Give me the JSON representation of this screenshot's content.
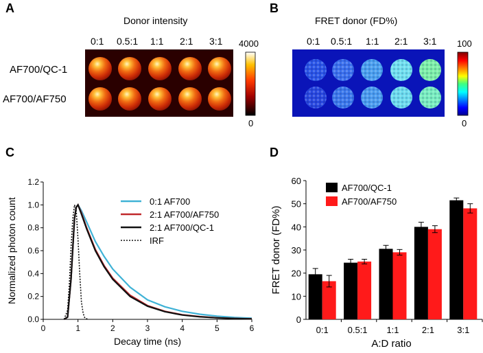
{
  "figure": {
    "panels": {
      "A": {
        "letter": "A",
        "title": "Donor intensity",
        "columns": [
          "0:1",
          "0.5:1",
          "1:1",
          "2:1",
          "3:1"
        ],
        "rows": [
          "AF700/QC-1",
          "AF700/AF750"
        ],
        "colorbar": {
          "max_label": "4000",
          "min_label": "0"
        }
      },
      "B": {
        "letter": "B",
        "title": "FRET donor (FD%)",
        "columns": [
          "0:1",
          "0.5:1",
          "1:1",
          "2:1",
          "3:1"
        ],
        "colorbar": {
          "max_label": "100",
          "min_label": "0"
        }
      },
      "C": {
        "letter": "C"
      },
      "D": {
        "letter": "D"
      }
    }
  },
  "chart_data": [
    {
      "panel": "C",
      "type": "line",
      "title": "",
      "xlabel": "Decay time (ns)",
      "ylabel": "Normalized photon count",
      "xlim": [
        0,
        6
      ],
      "ylim": [
        0,
        1.2
      ],
      "xticks": [
        "0",
        "1",
        "2",
        "3",
        "4",
        "5",
        "6"
      ],
      "yticks": [
        "0.0",
        "0.2",
        "0.4",
        "0.6",
        "0.8",
        "1.0",
        "1.2"
      ],
      "legend": [
        "0:1  AF700",
        "2:1  AF700/AF750",
        "2:1  AF700/QC-1",
        "IRF"
      ],
      "legend_position": "top-right",
      "series": [
        {
          "name": "0:1  AF700",
          "color": "#3fb2d6",
          "dash": "solid",
          "x": [
            0.6,
            0.7,
            0.8,
            0.9,
            0.95,
            1.0,
            1.1,
            1.25,
            1.5,
            1.75,
            2.0,
            2.5,
            3.0,
            3.5,
            4.0,
            4.5,
            5.0,
            5.5,
            6.0
          ],
          "y": [
            0.0,
            0.02,
            0.35,
            0.88,
            0.98,
            1.0,
            0.95,
            0.85,
            0.68,
            0.55,
            0.44,
            0.28,
            0.17,
            0.11,
            0.07,
            0.045,
            0.028,
            0.017,
            0.01
          ]
        },
        {
          "name": "2:1  AF700/AF750",
          "color": "#c0282b",
          "dash": "solid",
          "x": [
            0.6,
            0.7,
            0.8,
            0.9,
            0.95,
            1.0,
            1.1,
            1.25,
            1.5,
            1.75,
            2.0,
            2.5,
            3.0,
            3.5,
            4.0,
            4.5,
            5.0,
            5.5,
            6.0
          ],
          "y": [
            0.0,
            0.02,
            0.35,
            0.88,
            0.98,
            1.0,
            0.93,
            0.8,
            0.61,
            0.47,
            0.36,
            0.21,
            0.12,
            0.07,
            0.04,
            0.024,
            0.014,
            0.008,
            0.005
          ]
        },
        {
          "name": "2:1  AF700/QC-1",
          "color": "#111111",
          "dash": "solid",
          "x": [
            0.6,
            0.7,
            0.8,
            0.9,
            0.95,
            1.0,
            1.1,
            1.25,
            1.5,
            1.75,
            2.0,
            2.5,
            3.0,
            3.5,
            4.0,
            4.5,
            5.0,
            5.5,
            6.0
          ],
          "y": [
            0.0,
            0.02,
            0.35,
            0.88,
            0.98,
            1.0,
            0.92,
            0.79,
            0.6,
            0.46,
            0.35,
            0.2,
            0.115,
            0.067,
            0.038,
            0.022,
            0.013,
            0.007,
            0.004
          ]
        },
        {
          "name": "IRF",
          "color": "#111111",
          "dash": "dotted",
          "x": [
            0.6,
            0.7,
            0.75,
            0.8,
            0.85,
            0.9,
            0.95,
            1.0,
            1.05,
            1.1,
            1.15,
            1.2,
            1.3
          ],
          "y": [
            0.0,
            0.08,
            0.3,
            0.62,
            0.88,
            1.0,
            0.95,
            0.7,
            0.4,
            0.15,
            0.05,
            0.01,
            0.0
          ]
        }
      ]
    },
    {
      "panel": "D",
      "type": "bar",
      "title": "",
      "xlabel": "A:D ratio",
      "ylabel": "FRET donor (FD%)",
      "ylim": [
        0,
        60
      ],
      "yticks": [
        "0",
        "10",
        "20",
        "30",
        "40",
        "50",
        "60"
      ],
      "categories": [
        "0:1",
        "0.5:1",
        "1:1",
        "2:1",
        "3:1"
      ],
      "legend_position": "top-left",
      "series": [
        {
          "name": "AF700/QC-1",
          "color": "#000000",
          "values": [
            19.5,
            24.5,
            30.5,
            40,
            51.5
          ],
          "errors": [
            2.5,
            1.5,
            1.5,
            2,
            1
          ]
        },
        {
          "name": "AF700/AF750",
          "color": "#ff1a1a",
          "values": [
            16.5,
            25,
            29,
            39,
            48
          ],
          "errors": [
            2.5,
            1,
            1.2,
            1.5,
            2
          ]
        }
      ]
    }
  ]
}
